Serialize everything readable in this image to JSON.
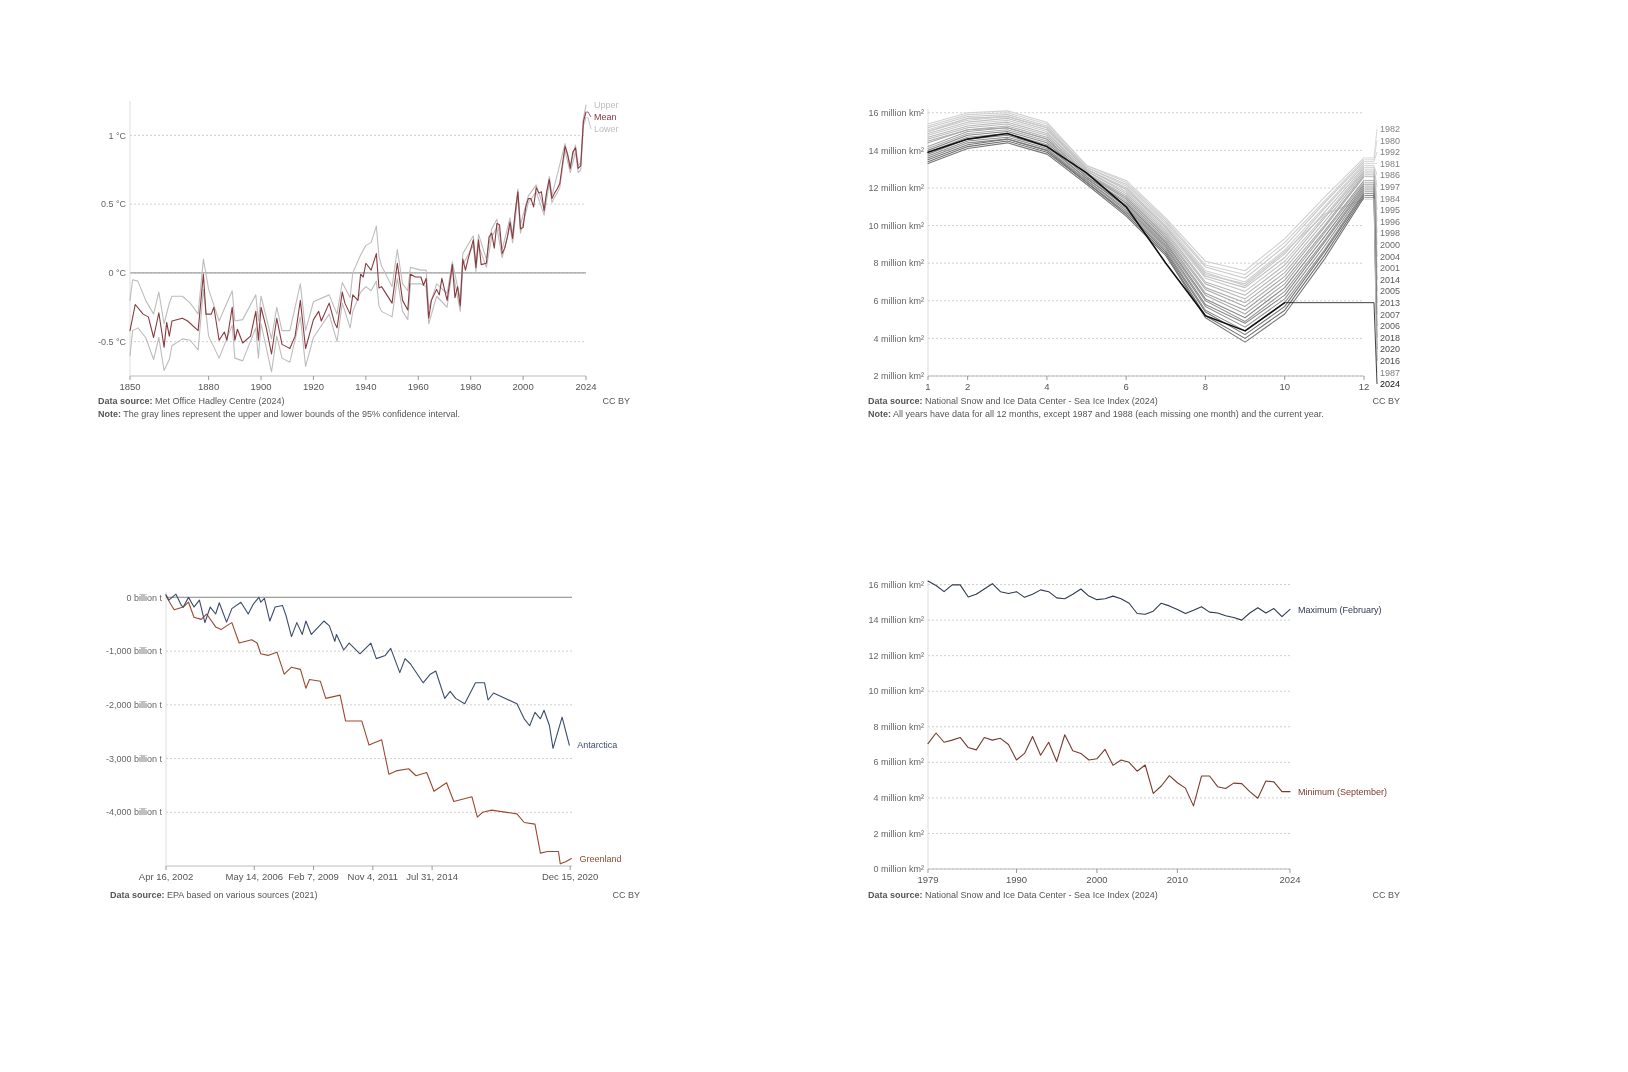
{
  "chart_data": [
    {
      "type": "line",
      "xlim": [
        1850,
        2024
      ],
      "ylim": [
        -0.75,
        1.25
      ],
      "xticks": [
        1850,
        1880,
        1900,
        1920,
        1940,
        1960,
        1980,
        2000,
        2024
      ],
      "yticks": [
        {
          "value": -0.5,
          "label": "-0.5 °C"
        },
        {
          "value": 0,
          "label": "0 °C"
        },
        {
          "value": 0.5,
          "label": "0.5 °C"
        },
        {
          "value": 1,
          "label": "1 °C"
        }
      ],
      "grid": "y",
      "ref_lines": [
        {
          "axis": "y",
          "value": 0,
          "color": "#a0a0a0",
          "line_style": "solid"
        }
      ],
      "series": [
        {
          "name": "Upper",
          "color": "#bdbdbd",
          "x": [
            1850,
            1851,
            1853,
            1856,
            1859,
            1861,
            1863,
            1865,
            1866,
            1870,
            1873,
            1876,
            1878,
            1880,
            1884,
            1889,
            1890,
            1893,
            1898,
            1899,
            1900,
            1904,
            1906,
            1908,
            1911,
            1915,
            1917,
            1920,
            1926,
            1929,
            1931,
            1934,
            1935,
            1938,
            1940,
            1942,
            1944,
            1945,
            1946,
            1950,
            1952,
            1954,
            1956,
            1957,
            1961,
            1963,
            1964,
            1967,
            1971,
            1973,
            1976,
            1977,
            1981,
            1982,
            1983,
            1986,
            1988,
            1990,
            1992,
            1995,
            1996,
            1998,
            1999,
            2002,
            2005,
            2008,
            2010,
            2011,
            2016,
            2018,
            2020,
            2021,
            2022,
            2023,
            2024
          ],
          "values": [
            -0.2,
            -0.05,
            -0.06,
            -0.2,
            -0.3,
            -0.14,
            -0.37,
            -0.22,
            -0.17,
            -0.17,
            -0.22,
            -0.3,
            0.1,
            -0.12,
            -0.35,
            -0.13,
            -0.35,
            -0.34,
            -0.16,
            -0.35,
            -0.17,
            -0.48,
            -0.25,
            -0.42,
            -0.42,
            -0.08,
            -0.42,
            -0.21,
            -0.16,
            -0.3,
            -0.07,
            -0.18,
            0.0,
            0.13,
            0.2,
            0.22,
            0.34,
            0.12,
            0.05,
            -0.1,
            0.17,
            -0.08,
            -0.13,
            0.04,
            0.02,
            0.02,
            -0.26,
            -0.08,
            -0.15,
            0.08,
            -0.19,
            0.14,
            0.27,
            0.07,
            0.28,
            0.1,
            0.32,
            0.39,
            0.17,
            0.4,
            0.28,
            0.61,
            0.35,
            0.56,
            0.64,
            0.47,
            0.7,
            0.56,
            0.94,
            0.78,
            0.93,
            0.78,
            0.8,
            1.12,
            1.22
          ]
        },
        {
          "name": "Mean",
          "color": "#883a3f",
          "x": [
            1850,
            1852,
            1855,
            1857,
            1859,
            1861,
            1863,
            1864,
            1865,
            1866,
            1870,
            1872,
            1876,
            1878,
            1879,
            1881,
            1882,
            1884,
            1886,
            1887,
            1889,
            1890,
            1891,
            1893,
            1896,
            1898,
            1899,
            1900,
            1902,
            1904,
            1906,
            1908,
            1910,
            1911,
            1913,
            1915,
            1917,
            1920,
            1922,
            1923,
            1926,
            1928,
            1929,
            1931,
            1932,
            1934,
            1935,
            1937,
            1938,
            1939,
            1940,
            1942,
            1944,
            1945,
            1946,
            1950,
            1952,
            1954,
            1956,
            1957,
            1959,
            1961,
            1962,
            1963,
            1964,
            1965,
            1967,
            1968,
            1969,
            1971,
            1973,
            1974,
            1975,
            1976,
            1977,
            1978,
            1979,
            1981,
            1982,
            1983,
            1984,
            1986,
            1987,
            1988,
            1989,
            1990,
            1991,
            1992,
            1993,
            1994,
            1995,
            1996,
            1997,
            1998,
            1999,
            2000,
            2001,
            2002,
            2003,
            2004,
            2005,
            2006,
            2007,
            2008,
            2009,
            2010,
            2011,
            2012,
            2013,
            2014,
            2015,
            2016,
            2017,
            2018,
            2019,
            2020,
            2021,
            2022,
            2023,
            2024
          ],
          "values": [
            -0.42,
            -0.23,
            -0.3,
            -0.32,
            -0.47,
            -0.29,
            -0.54,
            -0.36,
            -0.46,
            -0.35,
            -0.33,
            -0.35,
            -0.42,
            -0.01,
            -0.3,
            -0.3,
            -0.25,
            -0.49,
            -0.43,
            -0.49,
            -0.25,
            -0.49,
            -0.41,
            -0.51,
            -0.46,
            -0.28,
            -0.49,
            -0.25,
            -0.4,
            -0.59,
            -0.33,
            -0.52,
            -0.54,
            -0.55,
            -0.46,
            -0.2,
            -0.55,
            -0.34,
            -0.28,
            -0.35,
            -0.22,
            -0.36,
            -0.4,
            -0.14,
            -0.22,
            -0.3,
            -0.16,
            -0.2,
            -0.01,
            -0.03,
            0.07,
            0.02,
            0.14,
            -0.11,
            -0.1,
            -0.22,
            0.07,
            -0.2,
            -0.27,
            -0.01,
            -0.03,
            -0.03,
            -0.09,
            -0.04,
            -0.33,
            -0.2,
            -0.12,
            -0.16,
            -0.04,
            -0.2,
            0.06,
            -0.18,
            -0.1,
            -0.24,
            0.1,
            0.02,
            0.1,
            0.24,
            0.04,
            0.24,
            0.06,
            0.07,
            0.26,
            0.29,
            0.18,
            0.36,
            0.35,
            0.14,
            0.18,
            0.26,
            0.37,
            0.25,
            0.44,
            0.59,
            0.32,
            0.33,
            0.48,
            0.54,
            0.54,
            0.48,
            0.62,
            0.58,
            0.59,
            0.45,
            0.59,
            0.68,
            0.54,
            0.58,
            0.61,
            0.65,
            0.79,
            0.92,
            0.86,
            0.76,
            0.88,
            0.91,
            0.76,
            0.78,
            1.1,
            1.17
          ]
        },
        {
          "name": "Lower",
          "color": "#bdbdbd",
          "x": [
            1850,
            1851,
            1853,
            1856,
            1859,
            1861,
            1863,
            1865,
            1866,
            1870,
            1873,
            1876,
            1878,
            1880,
            1884,
            1889,
            1890,
            1893,
            1898,
            1899,
            1900,
            1904,
            1906,
            1908,
            1911,
            1915,
            1917,
            1920,
            1926,
            1929,
            1931,
            1934,
            1935,
            1938,
            1940,
            1942,
            1944,
            1945,
            1946,
            1950,
            1952,
            1954,
            1956,
            1957,
            1961,
            1963,
            1964,
            1967,
            1971,
            1973,
            1976,
            1977,
            1981,
            1982,
            1983,
            1986,
            1988,
            1990,
            1992,
            1995,
            1996,
            1998,
            1999,
            2002,
            2005,
            2008,
            2010,
            2011,
            2012,
            2013,
            2014,
            2015,
            2016,
            2018,
            2020,
            2021,
            2022,
            2023,
            2024
          ],
          "values": [
            -0.6,
            -0.42,
            -0.4,
            -0.47,
            -0.63,
            -0.47,
            -0.71,
            -0.63,
            -0.53,
            -0.48,
            -0.49,
            -0.56,
            -0.12,
            -0.46,
            -0.62,
            -0.38,
            -0.62,
            -0.64,
            -0.4,
            -0.62,
            -0.37,
            -0.72,
            -0.46,
            -0.62,
            -0.65,
            -0.32,
            -0.68,
            -0.47,
            -0.3,
            -0.5,
            -0.22,
            -0.4,
            -0.28,
            -0.14,
            -0.1,
            -0.13,
            -0.06,
            -0.24,
            -0.28,
            -0.32,
            -0.04,
            -0.28,
            -0.34,
            -0.08,
            -0.08,
            -0.1,
            -0.37,
            -0.17,
            -0.25,
            0.03,
            -0.28,
            0.06,
            0.2,
            0.01,
            0.2,
            0.04,
            0.26,
            0.33,
            0.11,
            0.34,
            0.22,
            0.56,
            0.29,
            0.51,
            0.59,
            0.42,
            0.65,
            0.51,
            0.55,
            0.58,
            0.62,
            0.76,
            0.89,
            0.73,
            0.88,
            0.73,
            0.75,
            1.07,
            1.13
          ]
        }
      ],
      "annotations": [
        "Data source: Met Office Hadley Centre (2024)",
        "CC BY",
        "Note: The gray lines represent the upper and lower bounds of the 95% confidence interval."
      ]
    },
    {
      "type": "line",
      "x": [
        1,
        2,
        3,
        4,
        5,
        6,
        7,
        8,
        9,
        10,
        11,
        12
      ],
      "xlim": [
        1,
        12
      ],
      "ylim": [
        2,
        16.2
      ],
      "xticks": [
        1,
        2,
        4,
        6,
        8,
        10,
        12
      ],
      "legend": "right",
      "yticks": [
        {
          "value": 2,
          "label": "2 million km²"
        },
        {
          "value": 4,
          "label": "4 million km²"
        },
        {
          "value": 6,
          "label": "6 million km²"
        },
        {
          "value": 8,
          "label": "8 million km²"
        },
        {
          "value": 10,
          "label": "10 million km²"
        },
        {
          "value": 12,
          "label": "12 million km²"
        },
        {
          "value": 14,
          "label": "14 million km²"
        },
        {
          "value": 16,
          "label": "16 million km²"
        }
      ],
      "grid": "y",
      "series": [
        {
          "name": "1982",
          "color": "#d0d0d0",
          "values": [
            15.4,
            16.0,
            16.1,
            15.5,
            13.2,
            12.4,
            10.4,
            8.1,
            7.6,
            9.3,
            11.5,
            13.6
          ]
        },
        {
          "name": "1980",
          "color": "#d0d0d0",
          "values": [
            15.3,
            15.9,
            16.0,
            15.4,
            13.2,
            12.3,
            10.3,
            7.9,
            7.4,
            9.1,
            11.3,
            13.5
          ]
        },
        {
          "name": "1992",
          "color": "#c8c8c8",
          "values": [
            15.2,
            15.8,
            15.9,
            15.3,
            13.1,
            12.2,
            10.2,
            7.8,
            7.2,
            8.9,
            11.2,
            13.4
          ]
        },
        {
          "name": "1981",
          "color": "#d0d0d0",
          "values": [
            15.1,
            15.7,
            15.8,
            15.2,
            13.1,
            12.1,
            10.1,
            7.6,
            7.0,
            8.7,
            11.0,
            13.3
          ]
        },
        {
          "name": "1986",
          "color": "#c8c8c8",
          "values": [
            15.0,
            15.6,
            15.8,
            15.2,
            13.0,
            12.0,
            10.0,
            7.5,
            6.8,
            8.5,
            10.9,
            13.2
          ]
        },
        {
          "name": "1997",
          "color": "#c0c0c0",
          "values": [
            14.9,
            15.5,
            15.7,
            15.1,
            13.0,
            11.9,
            9.9,
            7.3,
            6.7,
            8.3,
            10.7,
            13.1
          ]
        },
        {
          "name": "1984",
          "color": "#c8c8c8",
          "values": [
            14.8,
            15.4,
            15.6,
            15.0,
            12.9,
            11.8,
            9.8,
            7.2,
            6.5,
            8.1,
            10.5,
            13.0
          ]
        },
        {
          "name": "1995",
          "color": "#b8b8b8",
          "values": [
            14.7,
            15.3,
            15.5,
            14.9,
            12.9,
            11.7,
            9.7,
            7.0,
            6.3,
            7.9,
            10.4,
            12.9
          ]
        },
        {
          "name": "1996",
          "color": "#b8b8b8",
          "values": [
            14.6,
            15.2,
            15.4,
            14.8,
            12.8,
            11.6,
            9.6,
            6.9,
            6.1,
            7.7,
            10.2,
            12.8
          ]
        },
        {
          "name": "1998",
          "color": "#b0b0b0",
          "values": [
            14.5,
            15.1,
            15.3,
            14.7,
            12.8,
            11.5,
            9.5,
            6.7,
            5.9,
            7.5,
            10.0,
            12.7
          ]
        },
        {
          "name": "2000",
          "color": "#a8a8a8",
          "values": [
            14.4,
            15.1,
            15.2,
            14.6,
            12.7,
            11.5,
            9.4,
            6.6,
            5.7,
            7.3,
            9.9,
            12.6
          ]
        },
        {
          "name": "2004",
          "color": "#a0a0a0",
          "values": [
            14.2,
            15.0,
            15.2,
            14.6,
            12.7,
            11.4,
            9.3,
            6.4,
            5.5,
            7.1,
            9.7,
            12.4
          ]
        },
        {
          "name": "2001",
          "color": "#a8a8a8",
          "values": [
            14.1,
            14.9,
            15.1,
            14.5,
            12.6,
            11.3,
            9.2,
            6.3,
            5.3,
            6.9,
            9.6,
            12.3
          ]
        },
        {
          "name": "2014",
          "color": "#888888",
          "values": [
            14.0,
            14.8,
            15.0,
            14.4,
            12.6,
            11.2,
            9.1,
            6.1,
            5.1,
            6.7,
            9.4,
            12.2
          ]
        },
        {
          "name": "2005",
          "color": "#999999",
          "values": [
            13.9,
            14.7,
            14.9,
            14.3,
            12.5,
            11.1,
            9.0,
            6.0,
            4.9,
            6.5,
            9.2,
            12.1
          ]
        },
        {
          "name": "2013",
          "color": "#888888",
          "values": [
            13.8,
            14.6,
            14.8,
            14.2,
            12.5,
            11.0,
            8.9,
            5.8,
            4.8,
            6.3,
            9.1,
            12.0
          ]
        },
        {
          "name": "2007",
          "color": "#909090",
          "values": [
            13.7,
            14.5,
            14.7,
            14.1,
            12.4,
            10.9,
            8.8,
            5.7,
            4.6,
            6.1,
            8.9,
            11.9
          ]
        },
        {
          "name": "2006",
          "color": "#909090",
          "values": [
            13.6,
            14.4,
            14.6,
            14.0,
            12.4,
            10.8,
            8.7,
            5.5,
            4.4,
            5.9,
            8.7,
            11.8
          ]
        },
        {
          "name": "2018",
          "color": "#777777",
          "values": [
            13.5,
            14.3,
            14.6,
            14.0,
            12.3,
            10.7,
            8.6,
            5.4,
            4.2,
            5.7,
            8.6,
            11.7
          ]
        },
        {
          "name": "2020",
          "color": "#707070",
          "values": [
            13.4,
            14.2,
            14.5,
            13.9,
            12.3,
            10.6,
            8.5,
            5.2,
            4.0,
            5.5,
            8.4,
            11.6
          ]
        },
        {
          "name": "2016",
          "color": "#777777",
          "values": [
            13.3,
            14.1,
            14.4,
            13.8,
            12.2,
            10.5,
            8.4,
            5.1,
            3.8,
            5.3,
            8.2,
            11.5
          ]
        },
        {
          "name": "1987",
          "color": "#c8c8c8",
          "values": [
            15.0,
            15.7,
            15.8,
            15.2,
            13.0,
            12.0,
            9.9,
            7.4,
            6.9,
            8.6,
            10.6,
            11.4
          ]
        },
        {
          "name": "2024",
          "color": "#111111",
          "x": [
            1,
            2,
            3,
            4,
            5,
            6,
            7,
            8,
            9,
            10
          ],
          "values": [
            13.9,
            14.6,
            14.9,
            14.2,
            12.8,
            11.0,
            8.0,
            5.2,
            4.4,
            5.9
          ]
        }
      ],
      "annotations": [
        "Data source: National Snow and Ice Data Center - Sea Ice Index (2024)",
        "CC BY",
        "Note: All years have data for all 12 months, except 1987 and 1988 (each missing one month) and the current year."
      ]
    },
    {
      "type": "line",
      "xlim": [
        "2002-04-16",
        "2021-01-15"
      ],
      "ylim": [
        -5000,
        100
      ],
      "xticks": [
        {
          "value": "2002-04-16",
          "label": "Apr 16, 2002"
        },
        {
          "value": "2006-05-14",
          "label": "May 14, 2006"
        },
        {
          "value": "2009-02-07",
          "label": "Feb 7, 2009"
        },
        {
          "value": "2011-11-04",
          "label": "Nov 4, 2011"
        },
        {
          "value": "2014-07-31",
          "label": "Jul 31, 2014"
        },
        {
          "value": "2020-12-15",
          "label": "Dec 15, 2020"
        }
      ],
      "yticks": [
        {
          "value": -4000,
          "label": "-4,000 billion t"
        },
        {
          "value": -3000,
          "label": "-3,000 billion t"
        },
        {
          "value": -2000,
          "label": "-2,000 billion t"
        },
        {
          "value": -1000,
          "label": "-1,000 billion t"
        },
        {
          "value": 0,
          "label": "0 billion t"
        }
      ],
      "grid": "y",
      "ref_lines": [
        {
          "axis": "y",
          "value": 0,
          "color": "#a0a0a0",
          "line_style": "solid"
        }
      ],
      "series": [
        {
          "name": "Antarctica",
          "color": "#3b4c6b",
          "x": [
            "2002-04-16",
            "2002-06",
            "2002-10",
            "2003-01",
            "2003-02",
            "2003-05",
            "2003-08",
            "2003-11",
            "2004-02",
            "2004-05",
            "2004-08",
            "2004-10",
            "2005-02",
            "2005-05",
            "2005-10",
            "2006-02",
            "2006-05",
            "2006-08",
            "2006-09",
            "2006-11",
            "2007-02",
            "2007-05",
            "2007-09",
            "2007-11",
            "2008-02",
            "2008-05",
            "2008-08",
            "2008-10",
            "2009-01",
            "2009-08",
            "2009-11",
            "2010-02",
            "2010-03",
            "2010-07",
            "2010-10",
            "2011-04",
            "2011-10",
            "2012-01",
            "2012-06",
            "2012-09",
            "2013-02",
            "2013-05",
            "2013-08",
            "2014-03",
            "2014-07",
            "2014-10",
            "2015-03",
            "2015-06",
            "2015-09",
            "2016-02",
            "2016-08",
            "2017-01",
            "2017-03",
            "2017-06",
            "2018-07",
            "2018-11",
            "2019-02",
            "2019-05",
            "2019-08",
            "2019-10",
            "2020-01",
            "2020-03",
            "2020-08",
            "2020-12"
          ],
          "values": [
            50,
            -50,
            60,
            -150,
            -180,
            0,
            -180,
            -50,
            -470,
            -180,
            -310,
            -100,
            -460,
            -210,
            -90,
            -310,
            -120,
            0,
            -90,
            -20,
            -440,
            -180,
            -150,
            -340,
            -730,
            -470,
            -690,
            -440,
            -690,
            -440,
            -530,
            -820,
            -690,
            -980,
            -850,
            -1050,
            -850,
            -1140,
            -1080,
            -950,
            -1400,
            -1140,
            -1240,
            -1590,
            -1430,
            -1370,
            -1880,
            -1750,
            -1880,
            -1980,
            -1590,
            -1590,
            -1910,
            -1780,
            -1980,
            -2260,
            -2390,
            -2140,
            -2260,
            -2100,
            -2390,
            -2810,
            -2230,
            -2750
          ]
        },
        {
          "name": "Greenland",
          "color": "#9b4a2e",
          "x": [
            "2002-04-16",
            "2002-07",
            "2002-09",
            "2003-02",
            "2003-05",
            "2003-08",
            "2003-12",
            "2004-03",
            "2004-08",
            "2004-11",
            "2005-02",
            "2005-05",
            "2005-09",
            "2006-04",
            "2006-07",
            "2006-09",
            "2007-01",
            "2007-06",
            "2007-10",
            "2008-02",
            "2008-07",
            "2008-10",
            "2008-12",
            "2009-06",
            "2009-09",
            "2010-05",
            "2010-08",
            "2011-05",
            "2011-09",
            "2012-04",
            "2012-08",
            "2012-12",
            "2013-07",
            "2013-11",
            "2014-05",
            "2014-09",
            "2015-04",
            "2015-08",
            "2016-06",
            "2016-09",
            "2016-12",
            "2017-05",
            "2018-07",
            "2018-11",
            "2019-05",
            "2019-08",
            "2019-12",
            "2020-06",
            "2020-07",
            "2020-10",
            "2021-01-05"
          ],
          "values": [
            30,
            -120,
            -230,
            -180,
            -90,
            -370,
            -410,
            -310,
            -550,
            -600,
            -530,
            -470,
            -850,
            -790,
            -850,
            -1050,
            -1080,
            -1020,
            -1430,
            -1300,
            -1340,
            -1690,
            -1530,
            -1560,
            -1880,
            -1820,
            -2300,
            -2300,
            -2750,
            -2650,
            -3290,
            -3230,
            -3190,
            -3320,
            -3260,
            -3610,
            -3450,
            -3800,
            -3710,
            -4090,
            -4000,
            -3960,
            -4030,
            -4190,
            -4220,
            -4760,
            -4730,
            -4730,
            -4960,
            -4920,
            -4860
          ]
        }
      ],
      "annotations": [
        "Data source: EPA based on various sources (2021)",
        "CC BY"
      ]
    },
    {
      "type": "line",
      "x": [
        1979,
        1980,
        1981,
        1982,
        1983,
        1984,
        1985,
        1986,
        1987,
        1988,
        1989,
        1990,
        1991,
        1992,
        1993,
        1994,
        1995,
        1996,
        1997,
        1998,
        1999,
        2000,
        2001,
        2002,
        2003,
        2004,
        2005,
        2006,
        2007,
        2008,
        2009,
        2010,
        2011,
        2012,
        2013,
        2014,
        2015,
        2016,
        2017,
        2018,
        2019,
        2020,
        2021,
        2022,
        2023,
        2024
      ],
      "xlim": [
        1979,
        2024
      ],
      "ylim": [
        0,
        16.2
      ],
      "xticks": [
        1979,
        1990,
        2000,
        2010,
        2024
      ],
      "yticks": [
        {
          "value": 0,
          "label": "0 million km²"
        },
        {
          "value": 2,
          "label": "2 million km²"
        },
        {
          "value": 4,
          "label": "4 million km²"
        },
        {
          "value": 6,
          "label": "6 million km²"
        },
        {
          "value": 8,
          "label": "8 million km²"
        },
        {
          "value": 10,
          "label": "10 million km²"
        },
        {
          "value": 12,
          "label": "12 million km²"
        },
        {
          "value": 14,
          "label": "14 million km²"
        },
        {
          "value": 16,
          "label": "16 million km²"
        }
      ],
      "grid": "y",
      "series": [
        {
          "name": "Maximum (February)",
          "color": "#2e3b4f",
          "values": [
            16.2,
            15.95,
            15.6,
            15.98,
            15.98,
            15.3,
            15.45,
            15.75,
            16.05,
            15.6,
            15.5,
            15.6,
            15.28,
            15.45,
            15.7,
            15.6,
            15.25,
            15.2,
            15.45,
            15.75,
            15.35,
            15.15,
            15.2,
            15.35,
            15.2,
            14.95,
            14.37,
            14.33,
            14.5,
            14.95,
            14.8,
            14.6,
            14.37,
            14.55,
            14.75,
            14.45,
            14.4,
            14.25,
            14.15,
            14.0,
            14.4,
            14.7,
            14.4,
            14.65,
            14.2,
            14.6
          ]
        },
        {
          "name": "Minimum (September)",
          "color": "#7a3b2e",
          "values": [
            7.05,
            7.65,
            7.13,
            7.25,
            7.4,
            6.83,
            6.7,
            7.4,
            7.25,
            7.35,
            7.0,
            6.13,
            6.5,
            7.45,
            6.4,
            7.13,
            6.05,
            7.55,
            6.65,
            6.5,
            6.13,
            6.2,
            6.73,
            5.83,
            6.13,
            6.0,
            5.5,
            5.85,
            4.25,
            4.67,
            5.25,
            4.85,
            4.55,
            3.55,
            5.23,
            5.23,
            4.63,
            4.53,
            4.83,
            4.8,
            4.35,
            3.98,
            4.95,
            4.9,
            4.35,
            4.35
          ]
        }
      ],
      "annotations": [
        "Data source: National Snow and Ice Data Center - Sea Ice Index (2024)",
        "CC BY"
      ]
    }
  ]
}
